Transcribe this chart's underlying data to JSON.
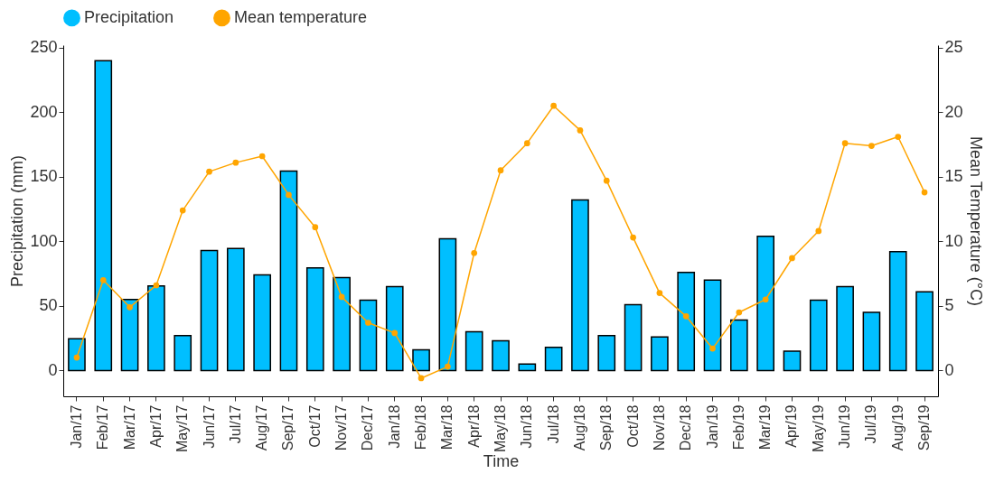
{
  "chart_data": {
    "type": "bar",
    "xlabel": "Time",
    "ylabel": "Precipitation (mm)",
    "y2label": "Mean Temperature (°C)",
    "categories": [
      "Jan/17",
      "Feb/17",
      "Mar/17",
      "Apr/17",
      "May/17",
      "Jun/17",
      "Jul/17",
      "Aug/17",
      "Sep/17",
      "Oct/17",
      "Nov/17",
      "Dec/17",
      "Jan/18",
      "Feb/18",
      "Mar/18",
      "Apr/18",
      "May/18",
      "Jun/18",
      "Jul/18",
      "Aug/18",
      "Sep/18",
      "Oct/18",
      "Nov/18",
      "Dec/18",
      "Jan/19",
      "Feb/19",
      "Mar/19",
      "Apr/19",
      "May/19",
      "Jun/19",
      "Jul/19",
      "Aug/19",
      "Sep/19"
    ],
    "series": [
      {
        "name": "Precipitation",
        "color": "#00bfff",
        "values": [
          24.5,
          240,
          55,
          65.5,
          27,
          93,
          94.5,
          74,
          154.5,
          79.5,
          72,
          54.5,
          65,
          16,
          102,
          30,
          23,
          5,
          18,
          132,
          27,
          51,
          26,
          76,
          70,
          39,
          104,
          15,
          54.5,
          65,
          45,
          92,
          61
        ]
      },
      {
        "name": "Mean temperature",
        "type": "line",
        "axis": "y2",
        "color": "#ffa500",
        "values": [
          1.0,
          7.0,
          4.9,
          6.6,
          12.4,
          15.4,
          16.1,
          16.6,
          13.6,
          11.1,
          5.7,
          3.7,
          2.9,
          -0.6,
          0.3,
          9.1,
          15.5,
          17.6,
          20.5,
          18.6,
          14.7,
          10.3,
          6.0,
          4.2,
          1.7,
          4.5,
          5.5,
          8.7,
          10.8,
          17.6,
          17.4,
          18.1,
          13.8
        ]
      }
    ],
    "ylim": [
      -20,
      252
    ],
    "yticks": [
      0,
      50,
      100,
      150,
      200,
      250
    ],
    "y2lim": [
      -2,
      25.2
    ],
    "y2ticks": [
      0,
      5,
      10,
      15,
      20,
      25
    ],
    "legend": "top",
    "marker": "circle",
    "grid": false
  }
}
